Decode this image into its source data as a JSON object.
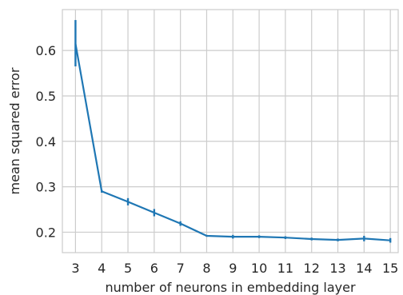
{
  "chart_data": {
    "type": "line",
    "title": "",
    "xlabel": "number of neurons in embedding layer",
    "ylabel": "mean squared error",
    "x": [
      3,
      4,
      5,
      6,
      7,
      8,
      9,
      10,
      11,
      12,
      13,
      14,
      15
    ],
    "xticks": [
      "3",
      "4",
      "5",
      "6",
      "7",
      "8",
      "9",
      "10",
      "11",
      "12",
      "13",
      "14",
      "15"
    ],
    "xlim": [
      2.5,
      15.3
    ],
    "yticks": [
      0.2,
      0.3,
      0.4,
      0.5,
      0.6
    ],
    "ytick_labels": [
      "0.2",
      "0.3",
      "0.4",
      "0.5",
      "0.6"
    ],
    "ylim": [
      0.155,
      0.69
    ],
    "grid": true,
    "series": [
      {
        "values": [
          0.615,
          0.29,
          0.267,
          0.243,
          0.219,
          0.192,
          0.19,
          0.19,
          0.188,
          0.185,
          0.183,
          0.186,
          0.182
        ],
        "err_low": [
          0.565,
          0.287,
          0.259,
          0.235,
          0.214,
          0.19,
          0.186,
          0.187,
          0.185,
          0.182,
          0.18,
          0.18,
          0.177
        ],
        "err_high": [
          0.667,
          0.293,
          0.275,
          0.251,
          0.224,
          0.194,
          0.194,
          0.193,
          0.191,
          0.188,
          0.186,
          0.192,
          0.187
        ],
        "color": "#1f77b4"
      }
    ]
  }
}
